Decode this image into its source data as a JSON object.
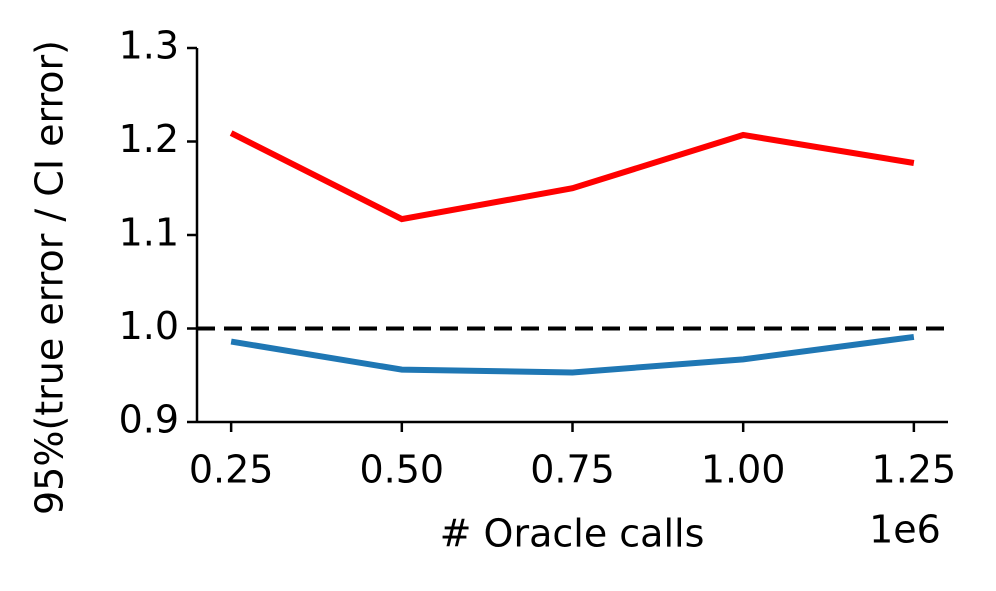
{
  "chart_data": {
    "type": "line",
    "x_label": "# Oracle calls",
    "y_label": "95%(true error / CI error)",
    "x_offset_label": "1e6",
    "x": [
      0.25,
      0.5,
      0.75,
      1.0,
      1.25
    ],
    "series": [
      {
        "color": "#ff0000",
        "values": [
          1.209,
          1.117,
          1.15,
          1.207,
          1.177
        ]
      },
      {
        "color": "#1f77b4",
        "values": [
          0.986,
          0.956,
          0.953,
          0.967,
          0.991
        ]
      }
    ],
    "reference_line": {
      "value": 1,
      "color": "#000000"
    },
    "xlim": [
      0.2,
      1.3
    ],
    "ylim": [
      0.9,
      1.3
    ],
    "xticks": [
      0.25,
      {
        "value": 0.5,
        "label": "0.50"
      },
      0.75,
      {
        "value": 1,
        "label": "1.00"
      },
      1.25
    ],
    "yticks": [
      0.9,
      {
        "value": 1,
        "label": "1.0"
      },
      1.1,
      1.2,
      1.3
    ],
    "grid": false
  }
}
